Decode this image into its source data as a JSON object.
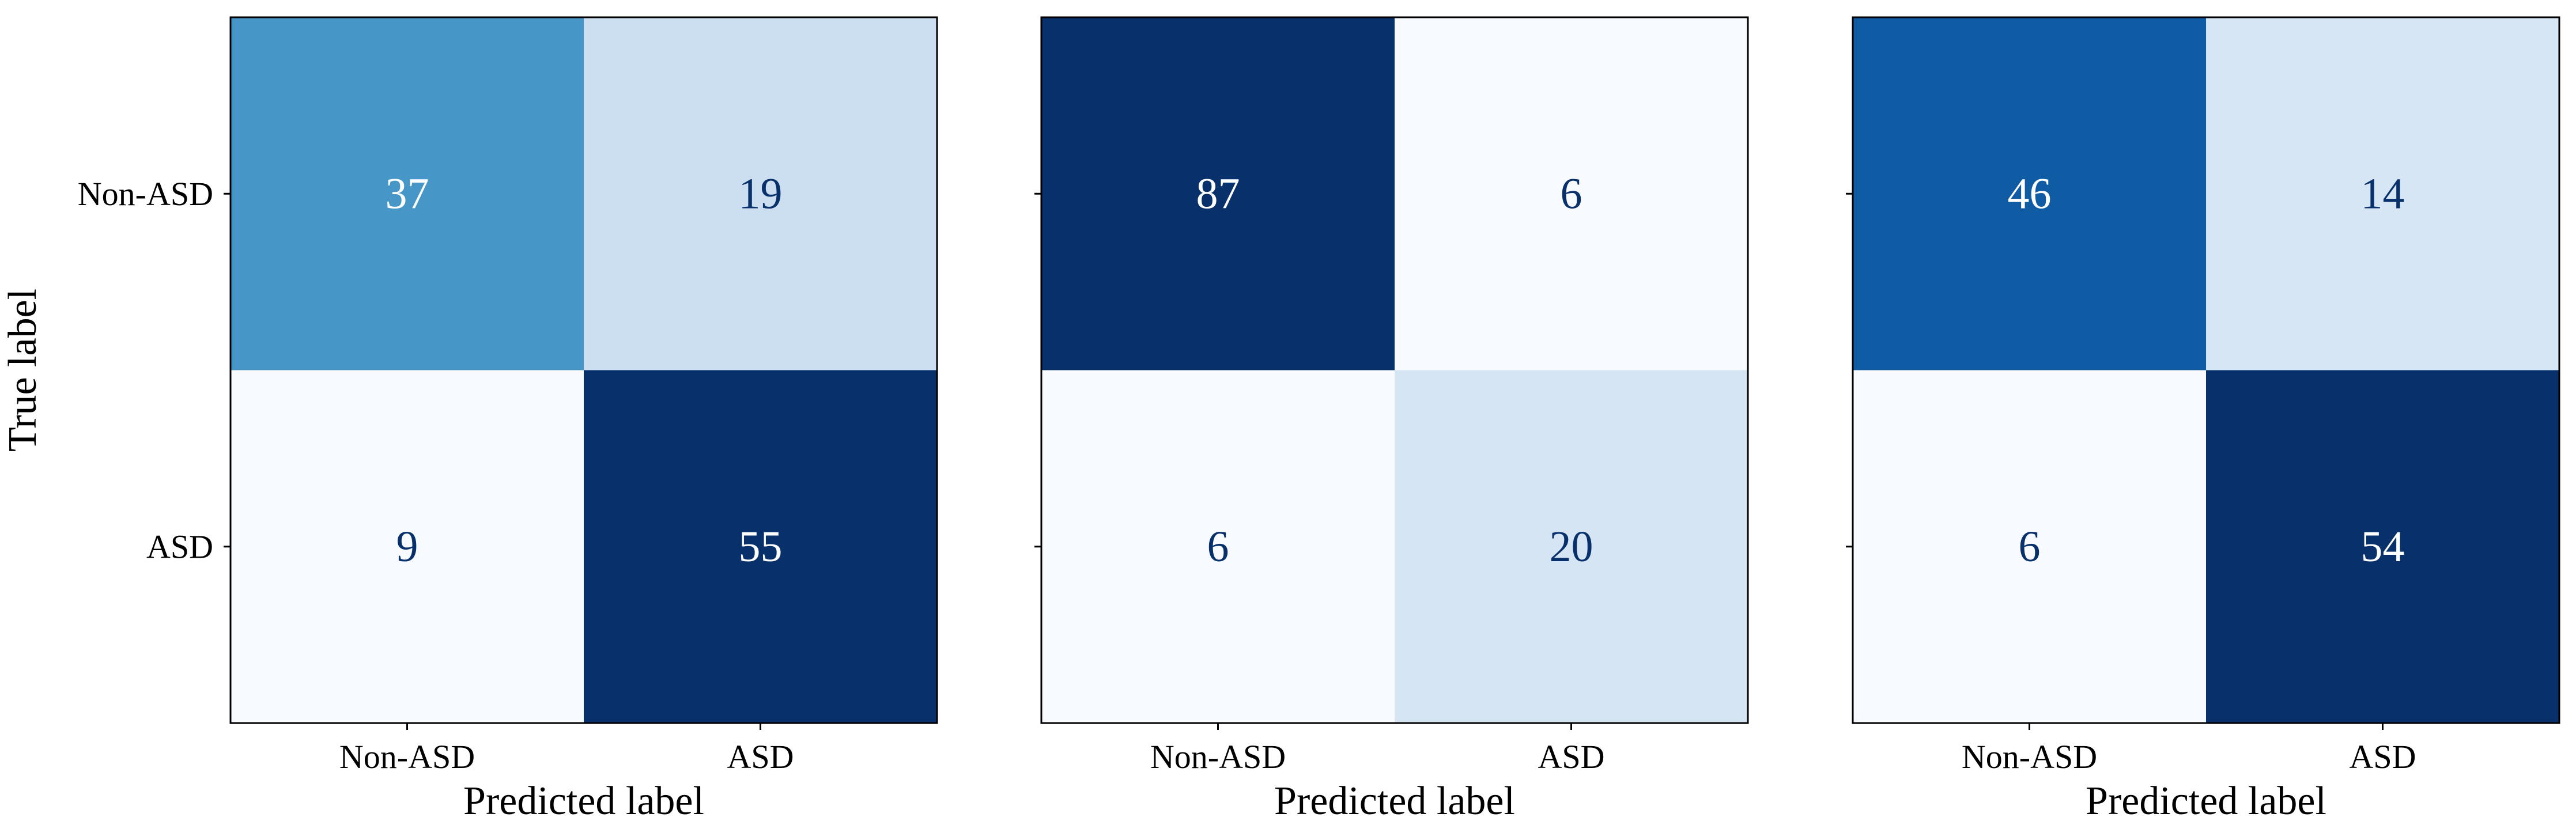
{
  "chart_data": [
    {
      "type": "heatmap",
      "subtype": "confusion-matrix",
      "colormap": "Blues",
      "x_categories": [
        "Non-ASD",
        "ASD"
      ],
      "y_categories": [
        "Non-ASD",
        "ASD"
      ],
      "matrix": [
        [
          37,
          19
        ],
        [
          9,
          55
        ]
      ],
      "xlabel": "Predicted label",
      "ylabel": "True label",
      "show_ytick_labels": true
    },
    {
      "type": "heatmap",
      "subtype": "confusion-matrix",
      "colormap": "Blues",
      "x_categories": [
        "Non-ASD",
        "ASD"
      ],
      "y_categories": [
        "Non-ASD",
        "ASD"
      ],
      "matrix": [
        [
          87,
          6
        ],
        [
          6,
          20
        ]
      ],
      "xlabel": "Predicted label",
      "ylabel": "",
      "show_ytick_labels": false
    },
    {
      "type": "heatmap",
      "subtype": "confusion-matrix",
      "colormap": "Blues",
      "x_categories": [
        "Non-ASD",
        "ASD"
      ],
      "y_categories": [
        "Non-ASD",
        "ASD"
      ],
      "matrix": [
        [
          46,
          14
        ],
        [
          6,
          54
        ]
      ],
      "xlabel": "Predicted label",
      "ylabel": "",
      "show_ytick_labels": false
    }
  ]
}
